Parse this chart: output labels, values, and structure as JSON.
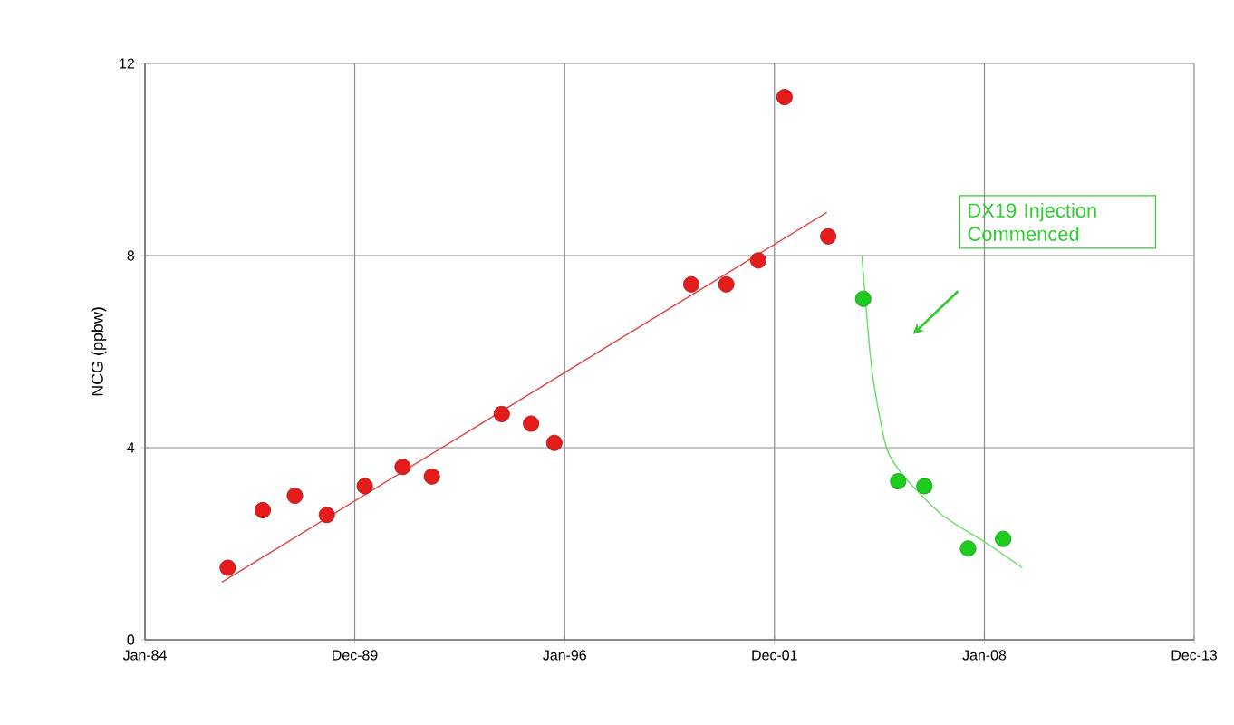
{
  "chart_data": {
    "type": "scatter",
    "ylabel": "NCG (ppbw)",
    "xlim": [
      "1984-01-01",
      "2013-12-31"
    ],
    "ylim": [
      0,
      12
    ],
    "yticks": [
      0,
      4,
      8,
      12
    ],
    "xticks": [
      {
        "value": "1984-01-01",
        "label": "Jan-84"
      },
      {
        "value": "1989-12-31",
        "label": "Dec-89"
      },
      {
        "value": "1996-01-01",
        "label": "Jan-96"
      },
      {
        "value": "2001-12-31",
        "label": "Dec-01"
      },
      {
        "value": "2008-01-01",
        "label": "Jan-08"
      },
      {
        "value": "2013-12-31",
        "label": "Dec-13"
      }
    ],
    "grid": true,
    "marker": "circle",
    "annotations": [
      "DX19 Injection Commenced"
    ],
    "series": [
      {
        "color": "#e51c1c",
        "x": [
          "1986-05-15",
          "1987-05-15",
          "1988-04-15",
          "1989-03-15",
          "1990-04-15",
          "1991-05-15",
          "1992-03-15",
          "1994-03-15",
          "1995-01-15",
          "1995-09-15",
          "1999-08-15",
          "2000-08-15",
          "2001-07-15",
          "2002-04-15",
          "2003-07-15"
        ],
        "values": [
          1.5,
          2.7,
          3.0,
          2.6,
          3.2,
          3.6,
          3.4,
          4.7,
          4.5,
          4.1,
          7.4,
          7.4,
          7.9,
          11.3,
          8.4
        ]
      },
      {
        "color": "#1ecc1e",
        "x": [
          "2004-07-15",
          "2005-07-15",
          "2006-04-15",
          "2007-07-15",
          "2008-07-15"
        ],
        "values": [
          7.1,
          3.3,
          3.2,
          1.9,
          2.1
        ]
      },
      {
        "type": "line",
        "marker": "none",
        "color": "#e04848",
        "x": [
          "1986-03-15",
          "2003-07-01"
        ],
        "values": [
          1.2,
          8.9
        ]
      },
      {
        "type": "line",
        "marker": "none",
        "color": "#66dd66",
        "x": [
          "2004-07-01",
          "2004-10-15",
          "2005-03-15",
          "2005-09-15",
          "2006-10-15",
          "2008-02-01",
          "2009-02-01"
        ],
        "values": [
          8.0,
          5.6,
          4.0,
          3.4,
          2.6,
          2.0,
          1.5
        ]
      }
    ]
  }
}
